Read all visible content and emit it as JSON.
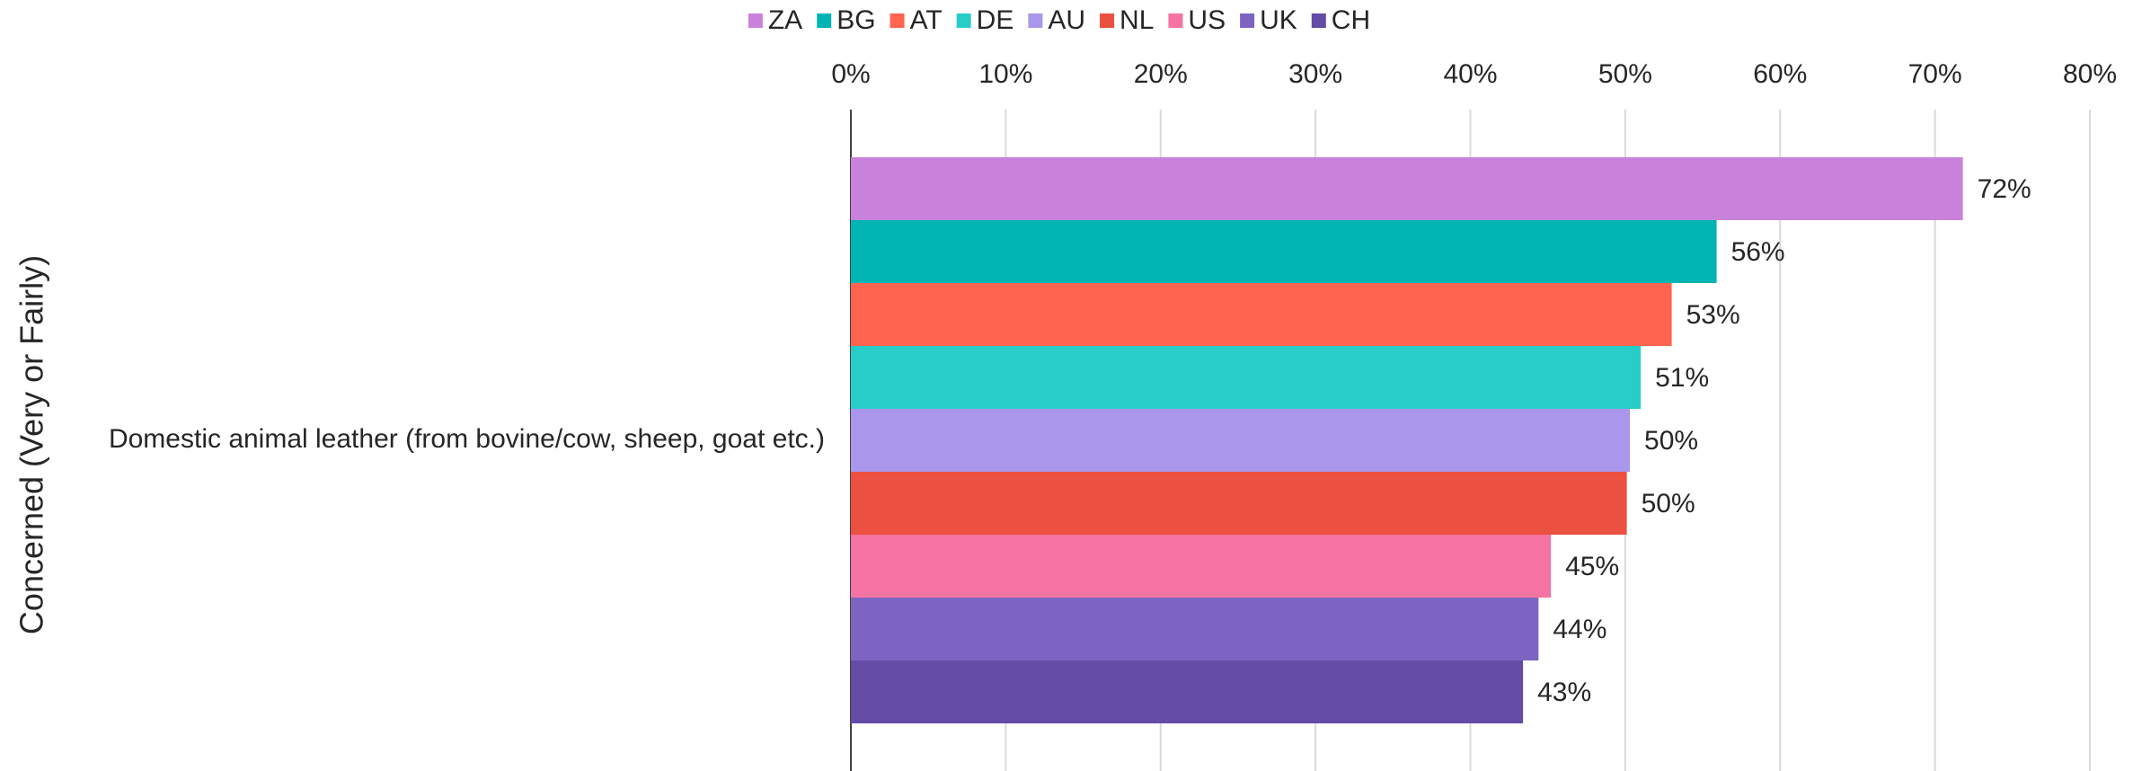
{
  "chart_data": {
    "type": "bar",
    "orientation": "horizontal",
    "y_label": "Concerned (Very or Fairly)",
    "categories": [
      "Domestic animal leather (from bovine/cow, sheep, goat etc.)"
    ],
    "series": [
      {
        "name": "ZA",
        "color": "#c882dc",
        "values": [
          71.8
        ],
        "value_labels": [
          "72%"
        ]
      },
      {
        "name": "BG",
        "color": "#00b4b4",
        "values": [
          55.9
        ],
        "value_labels": [
          "56%"
        ]
      },
      {
        "name": "AT",
        "color": "#ff6450",
        "values": [
          53.0
        ],
        "value_labels": [
          "53%"
        ]
      },
      {
        "name": "DE",
        "color": "#28cdc8",
        "values": [
          51.0
        ],
        "value_labels": [
          "51%"
        ]
      },
      {
        "name": "AU",
        "color": "#aa96eb",
        "values": [
          50.3
        ],
        "value_labels": [
          "50%"
        ]
      },
      {
        "name": "NL",
        "color": "#eb5040",
        "values": [
          50.1
        ],
        "value_labels": [
          "50%"
        ]
      },
      {
        "name": "US",
        "color": "#f573a0",
        "values": [
          45.2
        ],
        "value_labels": [
          "45%"
        ]
      },
      {
        "name": "UK",
        "color": "#7d64c3",
        "values": [
          44.4
        ],
        "value_labels": [
          "44%"
        ]
      },
      {
        "name": "CH",
        "color": "#644ba5",
        "values": [
          43.4
        ],
        "value_labels": [
          "43%"
        ]
      }
    ],
    "xlim": [
      0,
      80
    ],
    "xticks": [
      {
        "value": 0,
        "label": "0%"
      },
      {
        "value": 10,
        "label": "10%"
      },
      {
        "value": 20,
        "label": "20%"
      },
      {
        "value": 30,
        "label": "30%"
      },
      {
        "value": 40,
        "label": "40%"
      },
      {
        "value": 50,
        "label": "50%"
      },
      {
        "value": 60,
        "label": "60%"
      },
      {
        "value": 70,
        "label": "70%"
      },
      {
        "value": 80,
        "label": "80%"
      }
    ],
    "grid": true,
    "legend": "top"
  }
}
